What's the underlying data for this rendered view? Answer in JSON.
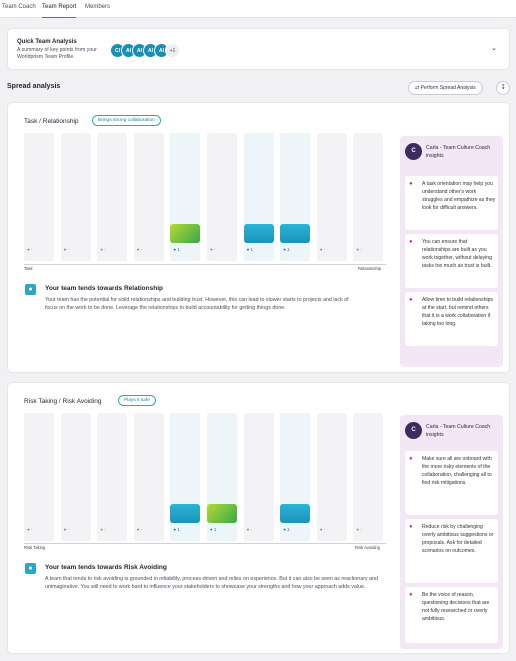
{
  "tabs": [
    {
      "label": "Team Coach",
      "active": false
    },
    {
      "label": "Team Report",
      "active": true
    },
    {
      "label": "Members",
      "active": false
    }
  ],
  "quick_analysis": {
    "title": "Quick Team Analysis",
    "subtitle": "A summary of key points from your Worldprism Team Profile.",
    "avatars": [
      "CI",
      "AI",
      "AI",
      "AI",
      "AI"
    ],
    "more": "+1",
    "chevron_icon": "chevron-down-icon"
  },
  "spread": {
    "heading": "Spread analysis",
    "perform_label": "Perform Spread Analysis",
    "download_icon": "download-icon"
  },
  "colors": {
    "accent": "#2aa6c8",
    "coach_bg": "#f3e6f5",
    "bar_blue": "#1c94b8",
    "bar_green": "#3aa64a"
  },
  "sections": [
    {
      "title": "Task / Relationship",
      "badge": "Brings strong collaboration",
      "counts": [
        "-",
        "-",
        "-",
        "-",
        "1",
        "-",
        "1",
        "1",
        "-",
        "-"
      ],
      "bars": [
        {
          "column": 5,
          "value": 1,
          "style": "green"
        },
        {
          "column": 7,
          "value": 1,
          "style": "blue"
        },
        {
          "column": 8,
          "value": 1,
          "style": "blue"
        }
      ],
      "axis_left": "Task",
      "axis_right": "Relationship",
      "insight_title": "Your team tends towards Relationship",
      "insight_text": "Your team has the potential for solid relationships and building trust. However, this can lead to slower starts to projects and lack of focus on the work to be done. Leverage the relationships to build accountability for getting things done.",
      "coach": {
        "name": "Carla - Team Culture Coach insights",
        "tips": [
          "A task orientation may help you understand other's work struggles and empathize as they look for difficult answers.",
          "You can ensure that relationships are built as you work together, without delaying tasks too much as trust is built.",
          "Allow time to build relationships at the start, but remind others that it is a work collaboration if taking too long."
        ]
      }
    },
    {
      "title": "Risk Taking / Risk Avoiding",
      "badge": "Plays it safe",
      "counts": [
        "-",
        "-",
        "-",
        "-",
        "1",
        "1",
        "-",
        "1",
        "-",
        "-"
      ],
      "bars": [
        {
          "column": 5,
          "value": 1,
          "style": "blue"
        },
        {
          "column": 6,
          "value": 1,
          "style": "green"
        },
        {
          "column": 8,
          "value": 1,
          "style": "blue"
        }
      ],
      "axis_left": "Risk Taking",
      "axis_right": "Risk Avoiding",
      "insight_title": "Your team tends towards Risk Avoiding",
      "insight_text": "A team that tends to risk avoiding is grounded in reliability, process-driven and relies on experience. But it can also be seen as reactionary and unimaginative. You will need to work hard to influence your stakeholders to showcase your strengths and how your approach adds value.",
      "coach": {
        "name": "Carla - Team Culture Coach insights",
        "tips": [
          "Make sure all are onboard with the more risky elements of the collaboration, challenging all to find risk mitigations.",
          "Reduce risk by challenging overly ambitious suggestions or proposals. Ask for detailed scenarios on outcomes.",
          "Be the voice of reason, questioning decisions that are not fully researched or overly ambitious."
        ]
      }
    }
  ]
}
